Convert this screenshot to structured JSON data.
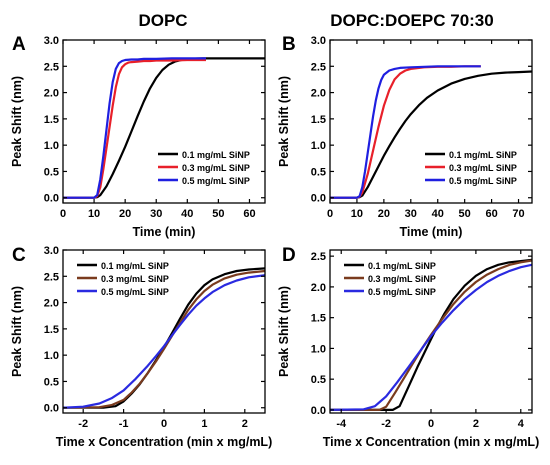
{
  "column_titles": [
    "DOPC",
    "DOPC:DOEPC 70:30"
  ],
  "chart_data": [
    {
      "panel": "A",
      "type": "line",
      "xlabel": "Time (min)",
      "ylabel": "Peak Shift (nm)",
      "xlim": [
        0,
        65
      ],
      "ylim": [
        -0.1,
        3.0
      ],
      "xticks": [
        0,
        10,
        20,
        30,
        40,
        50,
        60
      ],
      "yticks": [
        0.0,
        0.5,
        1.0,
        1.5,
        2.0,
        2.5,
        3.0
      ],
      "legend_position": "lower-right",
      "series": [
        {
          "name": "0.1 mg/mL SiNP",
          "color": "#000000",
          "x": [
            0,
            5,
            10,
            11,
            12,
            14,
            16,
            18,
            20,
            22,
            24,
            26,
            28,
            30,
            32,
            34,
            36,
            38,
            40,
            45,
            50,
            55,
            60,
            65
          ],
          "y": [
            0,
            0,
            0,
            0.01,
            0.05,
            0.22,
            0.45,
            0.7,
            0.97,
            1.26,
            1.55,
            1.83,
            2.08,
            2.28,
            2.43,
            2.53,
            2.59,
            2.62,
            2.64,
            2.65,
            2.65,
            2.65,
            2.65,
            2.65
          ]
        },
        {
          "name": "0.3 mg/mL SiNP",
          "color": "#e8202a",
          "x": [
            0,
            5,
            10,
            11,
            12,
            13,
            14,
            15,
            16,
            17,
            18,
            19,
            20,
            21,
            22,
            24,
            26,
            28,
            30,
            35,
            40,
            46
          ],
          "y": [
            0,
            0,
            0,
            0.03,
            0.2,
            0.55,
            0.95,
            1.35,
            1.75,
            2.1,
            2.35,
            2.48,
            2.54,
            2.57,
            2.58,
            2.59,
            2.6,
            2.6,
            2.61,
            2.61,
            2.62,
            2.62
          ]
        },
        {
          "name": "0.5 mg/mL SiNP",
          "color": "#1f1fe0",
          "x": [
            0,
            5,
            10,
            11,
            12,
            13,
            14,
            15,
            16,
            17,
            18,
            19,
            20,
            22,
            24,
            26,
            30,
            35,
            40,
            46
          ],
          "y": [
            0,
            0,
            0,
            0.05,
            0.35,
            0.8,
            1.3,
            1.8,
            2.2,
            2.45,
            2.56,
            2.6,
            2.62,
            2.63,
            2.63,
            2.64,
            2.64,
            2.65,
            2.65,
            2.65
          ]
        }
      ]
    },
    {
      "panel": "B",
      "type": "line",
      "xlabel": "Time (min)",
      "ylabel": "Peak Shift (nm)",
      "xlim": [
        0,
        75
      ],
      "ylim": [
        -0.1,
        3.0
      ],
      "xticks": [
        0,
        10,
        20,
        30,
        40,
        50,
        60,
        70
      ],
      "yticks": [
        0.0,
        0.5,
        1.0,
        1.5,
        2.0,
        2.5,
        3.0
      ],
      "legend_position": "lower-right",
      "series": [
        {
          "name": "0.1 mg/mL SiNP",
          "color": "#000000",
          "x": [
            0,
            5,
            10,
            11,
            12,
            14,
            16,
            18,
            20,
            22,
            24,
            26,
            28,
            30,
            33,
            36,
            40,
            45,
            50,
            55,
            60,
            65,
            70,
            75
          ],
          "y": [
            0,
            0,
            0,
            0.01,
            0.04,
            0.2,
            0.4,
            0.6,
            0.8,
            0.98,
            1.15,
            1.31,
            1.46,
            1.59,
            1.76,
            1.9,
            2.04,
            2.17,
            2.26,
            2.32,
            2.36,
            2.38,
            2.39,
            2.4
          ]
        },
        {
          "name": "0.3 mg/mL SiNP",
          "color": "#e8202a",
          "x": [
            0,
            5,
            10,
            11,
            12,
            14,
            16,
            18,
            20,
            22,
            24,
            26,
            28,
            30,
            35,
            40,
            45,
            50,
            56
          ],
          "y": [
            0,
            0,
            0,
            0.02,
            0.1,
            0.45,
            0.9,
            1.35,
            1.75,
            2.05,
            2.25,
            2.36,
            2.42,
            2.45,
            2.48,
            2.49,
            2.49,
            2.5,
            2.5
          ]
        },
        {
          "name": "0.5 mg/mL SiNP",
          "color": "#1f1fe0",
          "x": [
            0,
            5,
            10,
            11,
            12,
            13,
            14,
            15,
            16,
            17,
            18,
            19,
            20,
            22,
            24,
            26,
            30,
            35,
            40,
            50,
            56
          ],
          "y": [
            0,
            0,
            0,
            0.03,
            0.2,
            0.5,
            0.85,
            1.2,
            1.55,
            1.85,
            2.08,
            2.24,
            2.34,
            2.42,
            2.45,
            2.47,
            2.48,
            2.49,
            2.5,
            2.5,
            2.5
          ]
        }
      ]
    },
    {
      "panel": "C",
      "type": "line",
      "xlabel": "Time x Concentration (min x mg/mL)",
      "ylabel": "Peak Shift (nm)",
      "xlim": [
        -2.5,
        2.5
      ],
      "ylim": [
        -0.1,
        3.0
      ],
      "xticks": [
        -2,
        -1,
        0,
        1,
        2
      ],
      "yticks": [
        0.0,
        0.5,
        1.0,
        1.5,
        2.0,
        2.5,
        3.0
      ],
      "legend_position": "upper-left",
      "series": [
        {
          "name": "0.1 mg/mL SiNP",
          "color": "#000000",
          "x": [
            -2.5,
            -1.5,
            -1.2,
            -1.0,
            -0.8,
            -0.6,
            -0.4,
            -0.2,
            0,
            0.2,
            0.4,
            0.6,
            0.8,
            1.0,
            1.2,
            1.5,
            1.8,
            2.1,
            2.5
          ],
          "y": [
            0,
            0,
            0.03,
            0.12,
            0.27,
            0.45,
            0.66,
            0.9,
            1.15,
            1.42,
            1.7,
            1.96,
            2.17,
            2.33,
            2.44,
            2.54,
            2.6,
            2.63,
            2.65
          ]
        },
        {
          "name": "0.3 mg/mL SiNP",
          "color": "#7a3b1e",
          "x": [
            -2.5,
            -1.6,
            -1.3,
            -1.0,
            -0.8,
            -0.6,
            -0.4,
            -0.2,
            0,
            0.2,
            0.4,
            0.6,
            0.8,
            1.0,
            1.2,
            1.5,
            1.8,
            2.1,
            2.5
          ],
          "y": [
            0,
            0.01,
            0.05,
            0.15,
            0.29,
            0.46,
            0.66,
            0.88,
            1.12,
            1.37,
            1.62,
            1.86,
            2.06,
            2.22,
            2.34,
            2.46,
            2.53,
            2.57,
            2.6
          ]
        },
        {
          "name": "0.5 mg/mL SiNP",
          "color": "#2a2ae0",
          "x": [
            -2.5,
            -2.0,
            -1.6,
            -1.3,
            -1.0,
            -0.7,
            -0.4,
            -0.2,
            0,
            0.2,
            0.4,
            0.6,
            0.8,
            1.0,
            1.2,
            1.5,
            1.8,
            2.1,
            2.5
          ],
          "y": [
            0,
            0.02,
            0.08,
            0.18,
            0.33,
            0.55,
            0.8,
            0.98,
            1.17,
            1.38,
            1.58,
            1.77,
            1.94,
            2.08,
            2.2,
            2.33,
            2.42,
            2.48,
            2.52
          ]
        }
      ]
    },
    {
      "panel": "D",
      "type": "line",
      "xlabel": "Time x Concentration (min x mg/mL)",
      "ylabel": "Peak Shift (nm)",
      "xlim": [
        -4.5,
        4.5
      ],
      "ylim": [
        -0.05,
        2.6
      ],
      "xticks": [
        -4,
        -2,
        0,
        2,
        4
      ],
      "yticks": [
        0.0,
        0.5,
        1.0,
        1.5,
        2.0,
        2.5
      ],
      "legend_position": "upper-left",
      "series": [
        {
          "name": "0.1 mg/mL SiNP",
          "color": "#000000",
          "x": [
            -4.5,
            -1.7,
            -1.4,
            -1.0,
            -0.6,
            -0.2,
            0.2,
            0.6,
            1.0,
            1.5,
            2.0,
            2.5,
            3.0,
            3.5,
            4.0,
            4.5
          ],
          "y": [
            0,
            0,
            0.06,
            0.38,
            0.7,
            1.0,
            1.3,
            1.57,
            1.8,
            2.02,
            2.18,
            2.29,
            2.36,
            2.4,
            2.42,
            2.44
          ]
        },
        {
          "name": "0.3 mg/mL SiNP",
          "color": "#7a3b1e",
          "x": [
            -4.5,
            -2.3,
            -2.0,
            -1.6,
            -1.2,
            -0.8,
            -0.4,
            0,
            0.5,
            1.0,
            1.5,
            2.0,
            2.5,
            3.0,
            3.5,
            4.0,
            4.5
          ],
          "y": [
            0,
            0,
            0.05,
            0.28,
            0.52,
            0.76,
            1.0,
            1.22,
            1.48,
            1.72,
            1.92,
            2.08,
            2.2,
            2.29,
            2.36,
            2.4,
            2.43
          ]
        },
        {
          "name": "0.5 mg/mL SiNP",
          "color": "#2a2ae0",
          "x": [
            -4.5,
            -3.0,
            -2.5,
            -2.0,
            -1.5,
            -1.0,
            -0.5,
            0,
            0.5,
            1.0,
            1.5,
            2.0,
            2.5,
            3.0,
            3.5,
            4.0,
            4.5
          ],
          "y": [
            0,
            0.01,
            0.06,
            0.22,
            0.45,
            0.7,
            0.95,
            1.2,
            1.42,
            1.62,
            1.8,
            1.95,
            2.08,
            2.18,
            2.26,
            2.32,
            2.36
          ]
        }
      ]
    }
  ]
}
